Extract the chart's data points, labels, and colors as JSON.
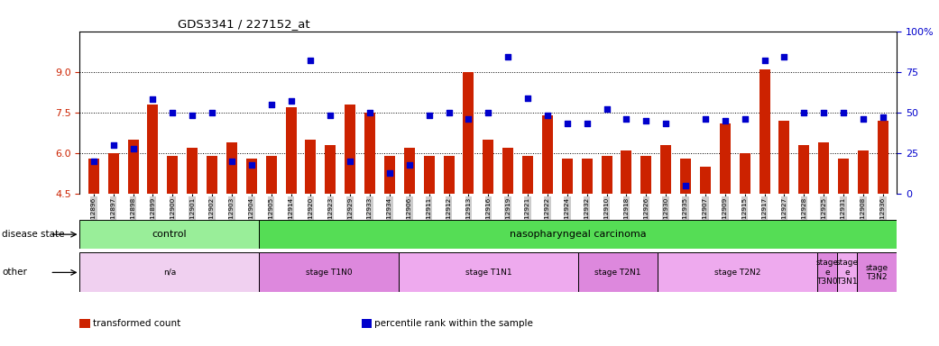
{
  "title": "GDS3341 / 227152_at",
  "samples": [
    "GSM312896",
    "GSM312897",
    "GSM312898",
    "GSM312899",
    "GSM312900",
    "GSM312901",
    "GSM312902",
    "GSM312903",
    "GSM312904",
    "GSM312905",
    "GSM312914",
    "GSM312920",
    "GSM312923",
    "GSM312929",
    "GSM312933",
    "GSM312934",
    "GSM312906",
    "GSM312911",
    "GSM312912",
    "GSM312913",
    "GSM312916",
    "GSM312919",
    "GSM312921",
    "GSM312922",
    "GSM312924",
    "GSM312932",
    "GSM312910",
    "GSM312918",
    "GSM312926",
    "GSM312930",
    "GSM312935",
    "GSM312907",
    "GSM312909",
    "GSM312915",
    "GSM312917",
    "GSM312927",
    "GSM312928",
    "GSM312925",
    "GSM312931",
    "GSM312908",
    "GSM312936"
  ],
  "bar_values": [
    5.8,
    6.0,
    6.5,
    7.8,
    5.9,
    6.2,
    5.9,
    6.4,
    5.8,
    5.9,
    7.7,
    6.5,
    6.3,
    7.8,
    7.5,
    5.9,
    6.2,
    5.9,
    5.9,
    9.0,
    6.5,
    6.2,
    5.9,
    7.4,
    5.8,
    5.8,
    5.9,
    6.1,
    5.9,
    6.3,
    5.8,
    5.5,
    7.1,
    6.0,
    9.1,
    7.2,
    6.3,
    6.4,
    5.8,
    6.1,
    7.2
  ],
  "scatter_pct": [
    20,
    30,
    28,
    58,
    50,
    48,
    50,
    20,
    18,
    55,
    57,
    82,
    48,
    20,
    50,
    13,
    18,
    48,
    50,
    46,
    50,
    84,
    59,
    48,
    43,
    43,
    52,
    46,
    45,
    43,
    5,
    46,
    45,
    46,
    82,
    84,
    50,
    50,
    50,
    46,
    47
  ],
  "ylim_left": [
    4.5,
    10.5
  ],
  "yticks_left": [
    4.5,
    6.0,
    7.5,
    9.0
  ],
  "yticks_right_pct": [
    0,
    25,
    50,
    75,
    100
  ],
  "bar_color": "#cc2200",
  "scatter_color": "#0000cc",
  "background_color": "#ffffff",
  "tick_bg_color": "#cccccc",
  "disease_state_groups": [
    {
      "label": "control",
      "start": 0,
      "end": 9,
      "color": "#99ee99"
    },
    {
      "label": "nasopharyngeal carcinoma",
      "start": 9,
      "end": 41,
      "color": "#55dd55"
    }
  ],
  "other_groups": [
    {
      "label": "n/a",
      "start": 0,
      "end": 9,
      "color": "#f0d0f0"
    },
    {
      "label": "stage T1N0",
      "start": 9,
      "end": 16,
      "color": "#dd88dd"
    },
    {
      "label": "stage T1N1",
      "start": 16,
      "end": 25,
      "color": "#eeaaee"
    },
    {
      "label": "stage T2N1",
      "start": 25,
      "end": 29,
      "color": "#dd88dd"
    },
    {
      "label": "stage T2N2",
      "start": 29,
      "end": 37,
      "color": "#eeaaee"
    },
    {
      "label": "stage\ne\nT3N0",
      "start": 37,
      "end": 38,
      "color": "#dd88dd"
    },
    {
      "label": "stage\ne\nT3N1",
      "start": 38,
      "end": 39,
      "color": "#eeaaee"
    },
    {
      "label": "stage\nT3N2",
      "start": 39,
      "end": 41,
      "color": "#dd88dd"
    }
  ],
  "legend_items": [
    {
      "label": "transformed count",
      "color": "#cc2200"
    },
    {
      "label": "percentile rank within the sample",
      "color": "#0000cc"
    }
  ]
}
